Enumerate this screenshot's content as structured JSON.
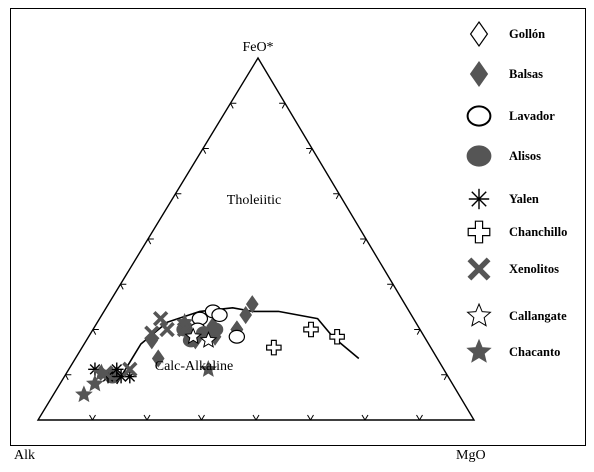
{
  "chart_data": {
    "type": "scatter",
    "subtype": "ternary AFM diagram",
    "vertices": {
      "top": "FeO*",
      "left": "Alk",
      "right": "MgO"
    },
    "field_labels": {
      "upper": "Tholeiitic",
      "lower": "Calc-Alkaline"
    },
    "ticks_per_side": 8,
    "grid": false,
    "legend_position": "right",
    "boundary_curve": [
      {
        "Alk": 77,
        "MgO": 13
      },
      {
        "Alk": 66,
        "MgO": 13
      },
      {
        "Alk": 57,
        "MgO": 16
      },
      {
        "Alk": 48,
        "MgO": 22
      },
      {
        "Alk": 40,
        "MgO": 29
      },
      {
        "Alk": 36,
        "MgO": 34
      },
      {
        "Alk": 30,
        "MgO": 40
      },
      {
        "Alk": 22,
        "MgO": 50
      },
      {
        "Alk": 21,
        "MgO": 56
      },
      {
        "Alk": 18,
        "MgO": 65
      }
    ],
    "series": [
      {
        "name": "Gollón",
        "marker": "diamond",
        "fill": "open",
        "points": [
          {
            "Alk": 42,
            "MgO": 33
          }
        ]
      },
      {
        "name": "Balsas",
        "marker": "diamond",
        "fill": "filled",
        "points": [
          {
            "Alk": 38,
            "MgO": 33
          },
          {
            "Alk": 35,
            "MgO": 33
          },
          {
            "Alk": 53,
            "MgO": 25
          },
          {
            "Alk": 47,
            "MgO": 27
          },
          {
            "Alk": 63,
            "MgO": 15
          },
          {
            "Alk": 64,
            "MgO": 19
          },
          {
            "Alk": 48,
            "MgO": 29
          },
          {
            "Alk": 42,
            "MgO": 33
          }
        ]
      },
      {
        "name": "Lavador",
        "marker": "circle",
        "fill": "open",
        "points": [
          {
            "Alk": 45,
            "MgO": 25
          },
          {
            "Alk": 44,
            "MgO": 27
          },
          {
            "Alk": 43,
            "MgO": 34
          },
          {
            "Alk": 49,
            "MgO": 23
          },
          {
            "Alk": 51,
            "MgO": 24
          }
        ]
      },
      {
        "name": "Alisos",
        "marker": "circle",
        "fill": "filled",
        "points": [
          {
            "Alk": 77,
            "MgO": 11
          },
          {
            "Alk": 54,
            "MgO": 21
          },
          {
            "Alk": 50,
            "MgO": 26
          },
          {
            "Alk": 47,
            "MgO": 28
          },
          {
            "Alk": 54,
            "MgO": 24
          }
        ]
      },
      {
        "name": "Yalen",
        "marker": "asterisk",
        "fill": "line",
        "points": [
          {
            "Alk": 80,
            "MgO": 6
          },
          {
            "Alk": 78,
            "MgO": 10
          },
          {
            "Alk": 75,
            "MgO": 11
          },
          {
            "Alk": 73,
            "MgO": 15
          },
          {
            "Alk": 75,
            "MgO": 13
          }
        ]
      },
      {
        "name": "Chanchillo",
        "marker": "cross",
        "fill": "open",
        "points": [
          {
            "Alk": 25,
            "MgO": 50
          },
          {
            "Alk": 20,
            "MgO": 57
          },
          {
            "Alk": 36,
            "MgO": 44
          }
        ]
      },
      {
        "name": "Xenolitos",
        "marker": "x",
        "fill": "filled",
        "points": [
          {
            "Alk": 58,
            "MgO": 14
          },
          {
            "Alk": 62,
            "MgO": 14
          },
          {
            "Alk": 58,
            "MgO": 17
          },
          {
            "Alk": 54,
            "MgO": 21
          },
          {
            "Alk": 78,
            "MgO": 9
          },
          {
            "Alk": 72,
            "MgO": 14
          }
        ]
      },
      {
        "name": "Callangate",
        "marker": "star",
        "fill": "open",
        "points": [
          {
            "Alk": 53,
            "MgO": 24
          },
          {
            "Alk": 50,
            "MgO": 28
          }
        ]
      },
      {
        "name": "Chacanto",
        "marker": "star",
        "fill": "filled",
        "points": [
          {
            "Alk": 86,
            "MgO": 7
          },
          {
            "Alk": 82,
            "MgO": 8
          },
          {
            "Alk": 79,
            "MgO": 8
          },
          {
            "Alk": 54,
            "MgO": 32
          },
          {
            "Alk": 53,
            "MgO": 20
          }
        ]
      }
    ]
  },
  "style": {
    "ink": "#000000",
    "filled_marker": "#555555",
    "open_marker_stroke": "#555555",
    "open_marker_fill": "#ffffff"
  }
}
